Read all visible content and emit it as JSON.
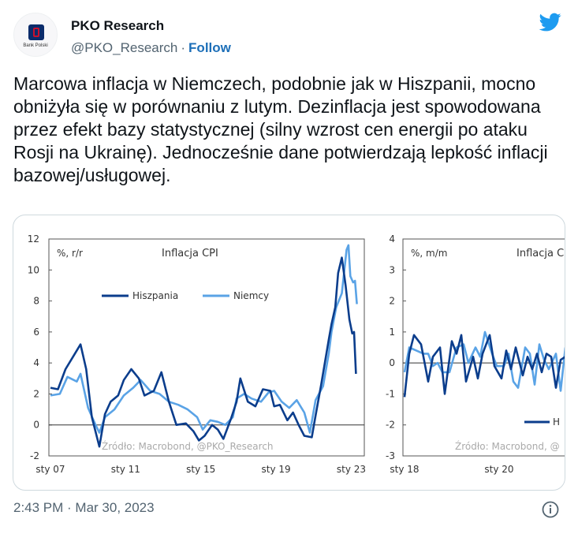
{
  "author": {
    "name": "PKO Research",
    "handle": "@PKO_Research",
    "follow_label": "Follow",
    "avatar_caption": "Bank Polski"
  },
  "tweet": {
    "text": "Marcowa inflacja w Niemczech, podobnie jak w Hiszpanii, mocno obniżyła się w porównaniu z lutym. Dezinflacja jest spowodowana przez efekt bazy statystycznej (silny wzrost cen energii po ataku Rosji na Ukrainę). Jednocześnie dane potwierdzają lepkość inflacji bazowej/usługowej."
  },
  "footer": {
    "timestamp": "2:43 PM · Mar 30, 2023"
  },
  "icons": [
    "twitter-bird-icon",
    "info-icon"
  ],
  "colors": {
    "link": "#1d6fb8",
    "series_dark": "#0b3d8c",
    "series_light": "#5aa3e6"
  },
  "chart_data": [
    {
      "type": "line",
      "title": "Inflacja CPI",
      "ylabel": "%, r/r",
      "source": "Źródło: Macrobond, @PKO_Research",
      "ylim": [
        -2,
        12
      ],
      "yticks": [
        "12",
        "10",
        "8",
        "6",
        "4",
        "2",
        "0",
        "-2"
      ],
      "xticks": [
        "sty 07",
        "sty 11",
        "sty 15",
        "sty 19",
        "sty 23"
      ],
      "xlim": [
        2007,
        2023.4
      ],
      "legend_position": "top-center",
      "series": [
        {
          "name": "Hiszpania",
          "color": "#0b3d8c",
          "points": [
            [
              2007.0,
              2.4
            ],
            [
              2007.4,
              2.3
            ],
            [
              2007.8,
              3.6
            ],
            [
              2008.2,
              4.4
            ],
            [
              2008.6,
              5.2
            ],
            [
              2008.9,
              3.6
            ],
            [
              2009.2,
              0.5
            ],
            [
              2009.6,
              -1.4
            ],
            [
              2009.9,
              0.7
            ],
            [
              2010.2,
              1.5
            ],
            [
              2010.6,
              1.9
            ],
            [
              2010.9,
              2.9
            ],
            [
              2011.3,
              3.6
            ],
            [
              2011.7,
              3.0
            ],
            [
              2012.0,
              1.9
            ],
            [
              2012.5,
              2.2
            ],
            [
              2012.9,
              3.4
            ],
            [
              2013.3,
              1.5
            ],
            [
              2013.7,
              0.0
            ],
            [
              2014.2,
              0.1
            ],
            [
              2014.6,
              -0.4
            ],
            [
              2014.9,
              -1.0
            ],
            [
              2015.2,
              -0.7
            ],
            [
              2015.6,
              0.0
            ],
            [
              2015.9,
              -0.3
            ],
            [
              2016.2,
              -0.9
            ],
            [
              2016.6,
              0.4
            ],
            [
              2016.9,
              1.5
            ],
            [
              2017.1,
              3.0
            ],
            [
              2017.5,
              1.5
            ],
            [
              2017.9,
              1.2
            ],
            [
              2018.3,
              2.3
            ],
            [
              2018.7,
              2.2
            ],
            [
              2018.9,
              1.2
            ],
            [
              2019.2,
              1.3
            ],
            [
              2019.6,
              0.3
            ],
            [
              2019.9,
              0.8
            ],
            [
              2020.2,
              0.0
            ],
            [
              2020.5,
              -0.7
            ],
            [
              2020.9,
              -0.8
            ],
            [
              2021.1,
              0.6
            ],
            [
              2021.4,
              2.6
            ],
            [
              2021.8,
              5.5
            ],
            [
              2021.95,
              6.5
            ],
            [
              2022.15,
              7.6
            ],
            [
              2022.3,
              9.8
            ],
            [
              2022.5,
              10.8
            ],
            [
              2022.7,
              9.0
            ],
            [
              2022.9,
              6.8
            ],
            [
              2023.05,
              5.9
            ],
            [
              2023.15,
              6.0
            ],
            [
              2023.25,
              3.3
            ]
          ]
        },
        {
          "name": "Niemcy",
          "color": "#5aa3e6",
          "points": [
            [
              2007.0,
              1.9
            ],
            [
              2007.5,
              2.0
            ],
            [
              2007.9,
              3.1
            ],
            [
              2008.4,
              2.8
            ],
            [
              2008.6,
              3.3
            ],
            [
              2009.0,
              1.1
            ],
            [
              2009.4,
              0.0
            ],
            [
              2009.6,
              -0.5
            ],
            [
              2009.9,
              0.5
            ],
            [
              2010.4,
              1.0
            ],
            [
              2010.9,
              1.9
            ],
            [
              2011.4,
              2.4
            ],
            [
              2011.8,
              2.9
            ],
            [
              2012.3,
              2.2
            ],
            [
              2012.8,
              2.0
            ],
            [
              2013.3,
              1.5
            ],
            [
              2013.8,
              1.3
            ],
            [
              2014.3,
              1.0
            ],
            [
              2014.8,
              0.5
            ],
            [
              2015.1,
              -0.3
            ],
            [
              2015.5,
              0.3
            ],
            [
              2015.9,
              0.2
            ],
            [
              2016.3,
              0.0
            ],
            [
              2016.7,
              0.5
            ],
            [
              2016.9,
              1.7
            ],
            [
              2017.3,
              2.0
            ],
            [
              2017.7,
              1.7
            ],
            [
              2018.2,
              1.5
            ],
            [
              2018.6,
              2.1
            ],
            [
              2018.9,
              2.2
            ],
            [
              2019.3,
              1.5
            ],
            [
              2019.7,
              1.1
            ],
            [
              2020.1,
              1.6
            ],
            [
              2020.5,
              0.8
            ],
            [
              2020.8,
              -0.5
            ],
            [
              2021.1,
              1.6
            ],
            [
              2021.5,
              2.5
            ],
            [
              2021.8,
              4.6
            ],
            [
              2021.95,
              6.0
            ],
            [
              2022.2,
              7.6
            ],
            [
              2022.5,
              8.5
            ],
            [
              2022.75,
              11.3
            ],
            [
              2022.85,
              11.6
            ],
            [
              2022.95,
              9.6
            ],
            [
              2023.1,
              9.2
            ],
            [
              2023.2,
              9.3
            ],
            [
              2023.3,
              7.8
            ]
          ]
        }
      ]
    },
    {
      "type": "line",
      "title": "Inflacja C",
      "ylabel": "%, m/m",
      "source": "Źródło: Macrobond, @",
      "ylim": [
        -3,
        4
      ],
      "yticks": [
        "4",
        "3",
        "2",
        "1",
        "0",
        "-1",
        "-2",
        "-3"
      ],
      "xticks": [
        "sty 18",
        "sty 20"
      ],
      "xlim": [
        2018,
        2021.4
      ],
      "legend_label": "H",
      "series": [
        {
          "name": "Hiszpania",
          "color": "#0b3d8c",
          "points": [
            [
              2018.0,
              -1.1
            ],
            [
              2018.1,
              0.3
            ],
            [
              2018.2,
              0.9
            ],
            [
              2018.35,
              0.6
            ],
            [
              2018.5,
              -0.6
            ],
            [
              2018.6,
              0.2
            ],
            [
              2018.75,
              0.5
            ],
            [
              2018.85,
              -1.0
            ],
            [
              2019.0,
              0.7
            ],
            [
              2019.1,
              0.3
            ],
            [
              2019.2,
              0.9
            ],
            [
              2019.3,
              -0.6
            ],
            [
              2019.45,
              0.2
            ],
            [
              2019.55,
              -0.5
            ],
            [
              2019.65,
              0.3
            ],
            [
              2019.8,
              0.9
            ],
            [
              2019.9,
              -0.1
            ],
            [
              2020.05,
              -0.5
            ],
            [
              2020.15,
              0.4
            ],
            [
              2020.25,
              -0.2
            ],
            [
              2020.35,
              0.5
            ],
            [
              2020.5,
              -0.4
            ],
            [
              2020.6,
              0.2
            ],
            [
              2020.7,
              -0.2
            ],
            [
              2020.8,
              0.3
            ],
            [
              2020.9,
              -0.3
            ],
            [
              2021.0,
              0.3
            ],
            [
              2021.1,
              0.2
            ],
            [
              2021.2,
              -0.8
            ],
            [
              2021.3,
              0.1
            ],
            [
              2021.4,
              0.2
            ]
          ]
        },
        {
          "name": "Niemcy",
          "color": "#5aa3e6",
          "points": [
            [
              2018.0,
              -0.3
            ],
            [
              2018.1,
              0.5
            ],
            [
              2018.25,
              0.4
            ],
            [
              2018.4,
              0.3
            ],
            [
              2018.5,
              0.3
            ],
            [
              2018.6,
              -0.1
            ],
            [
              2018.7,
              0.0
            ],
            [
              2018.8,
              -0.3
            ],
            [
              2018.95,
              -0.3
            ],
            [
              2019.1,
              0.5
            ],
            [
              2019.25,
              0.6
            ],
            [
              2019.35,
              0.0
            ],
            [
              2019.5,
              0.5
            ],
            [
              2019.6,
              0.2
            ],
            [
              2019.7,
              1.0
            ],
            [
              2019.85,
              0.3
            ],
            [
              2019.95,
              -0.1
            ],
            [
              2020.1,
              -0.1
            ],
            [
              2020.2,
              0.3
            ],
            [
              2020.3,
              -0.6
            ],
            [
              2020.4,
              -0.8
            ],
            [
              2020.55,
              0.5
            ],
            [
              2020.65,
              0.3
            ],
            [
              2020.75,
              -0.7
            ],
            [
              2020.85,
              0.6
            ],
            [
              2020.95,
              0.1
            ],
            [
              2021.05,
              -0.2
            ],
            [
              2021.2,
              0.3
            ],
            [
              2021.3,
              -0.9
            ],
            [
              2021.4,
              0.5
            ]
          ]
        }
      ]
    }
  ]
}
